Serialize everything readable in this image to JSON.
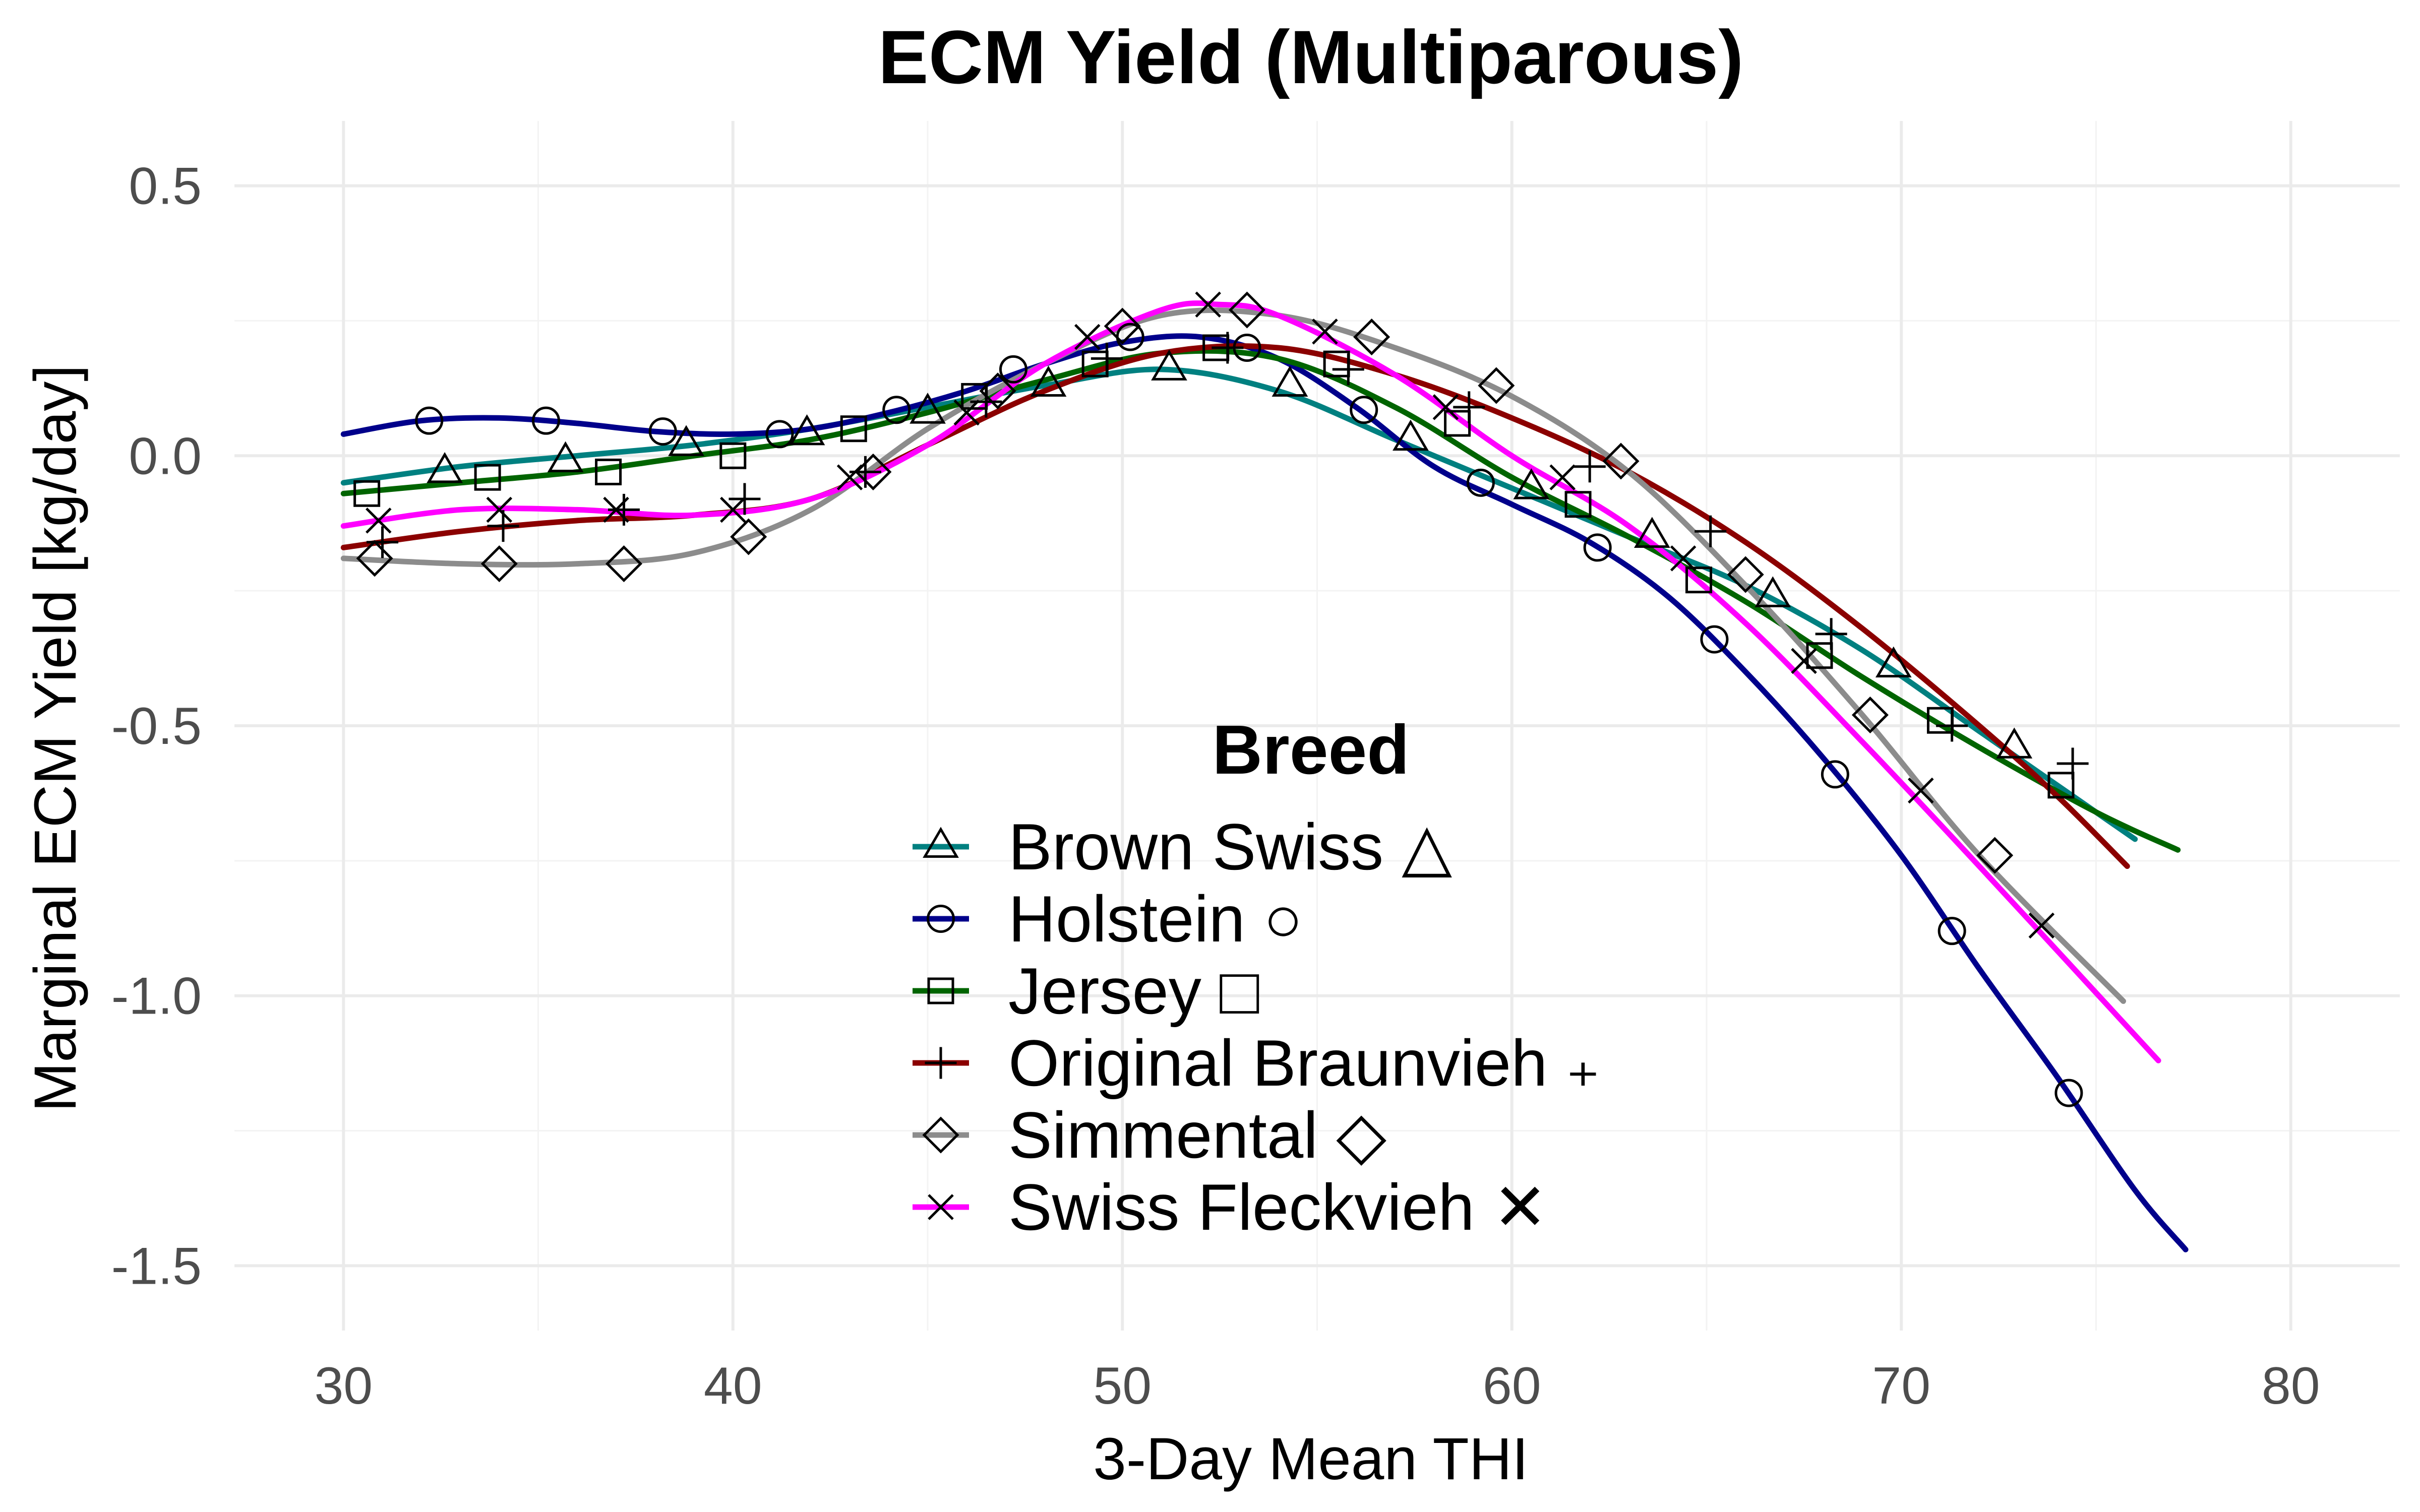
{
  "chart_data": {
    "type": "line",
    "title": "ECM Yield (Multiparous)",
    "xlabel": "3-Day Mean THI",
    "ylabel": "Marginal ECM Yield [kg/day]",
    "xlim": [
      27.2,
      82.8
    ],
    "ylim": [
      -1.62,
      0.62
    ],
    "x_ticks": [
      30,
      40,
      50,
      60,
      70,
      80
    ],
    "x_tick_labels": [
      "30",
      "40",
      "50",
      "60",
      "70",
      "80"
    ],
    "y_ticks": [
      -1.5,
      -1.0,
      -0.5,
      0.0,
      0.5
    ],
    "y_tick_labels": [
      "-1.5",
      "-1.0",
      "-0.5",
      "0.0",
      "0.5"
    ],
    "grid": true,
    "legend": {
      "title": "Breed",
      "position": "inside-bottom-center"
    },
    "series": [
      {
        "name": "Brown Swiss △",
        "color": "#008080",
        "marker": "triangle",
        "x": [
          30,
          33,
          36,
          39,
          42,
          45,
          48,
          51,
          54,
          57,
          60,
          63,
          66,
          69,
          72,
          74,
          76
        ],
        "y": [
          -0.05,
          -0.02,
          0.0,
          0.02,
          0.05,
          0.09,
          0.13,
          0.16,
          0.12,
          0.03,
          -0.06,
          -0.15,
          -0.24,
          -0.36,
          -0.51,
          -0.61,
          -0.71
        ],
        "marker_x": [
          32.6,
          35.7,
          38.8,
          41.9,
          45.0,
          48.1,
          51.2,
          54.3,
          57.4,
          60.5,
          63.6,
          66.7,
          69.8,
          72.9
        ],
        "marker_y": [
          -0.03,
          -0.01,
          0.02,
          0.04,
          0.08,
          0.13,
          0.16,
          0.13,
          0.03,
          -0.06,
          -0.15,
          -0.26,
          -0.39,
          -0.54
        ]
      },
      {
        "name": "Holstein ○",
        "color": "#00008b",
        "marker": "circle",
        "x": [
          30,
          32,
          34,
          36,
          38,
          40,
          42,
          44,
          46,
          48,
          50,
          52,
          54,
          56,
          58,
          60,
          62,
          64,
          66,
          68,
          70,
          72,
          74,
          76,
          77.3
        ],
        "y": [
          0.04,
          0.065,
          0.07,
          0.06,
          0.045,
          0.04,
          0.05,
          0.08,
          0.12,
          0.17,
          0.21,
          0.22,
          0.18,
          0.09,
          -0.02,
          -0.09,
          -0.16,
          -0.26,
          -0.4,
          -0.56,
          -0.74,
          -0.95,
          -1.15,
          -1.36,
          -1.47
        ],
        "marker_x": [
          32.2,
          35.2,
          38.2,
          41.2,
          44.2,
          47.2,
          50.2,
          53.2,
          56.2,
          59.2,
          62.2,
          65.2,
          68.3,
          71.3,
          74.3
        ],
        "marker_y": [
          0.065,
          0.065,
          0.045,
          0.04,
          0.085,
          0.16,
          0.22,
          0.2,
          0.085,
          -0.05,
          -0.17,
          -0.34,
          -0.59,
          -0.88,
          -1.18
        ]
      },
      {
        "name": "Jersey □",
        "color": "#006400",
        "marker": "square",
        "x": [
          30,
          33,
          36,
          39,
          42,
          45,
          48,
          51,
          54,
          57,
          60,
          63,
          66,
          69,
          72,
          75,
          77.1
        ],
        "y": [
          -0.07,
          -0.05,
          -0.03,
          0.0,
          0.03,
          0.08,
          0.14,
          0.19,
          0.18,
          0.09,
          -0.04,
          -0.15,
          -0.27,
          -0.41,
          -0.54,
          -0.66,
          -0.73
        ],
        "marker_x": [
          30.6,
          33.7,
          36.8,
          40.0,
          43.1,
          46.2,
          49.3,
          52.4,
          55.5,
          58.6,
          61.7,
          64.8,
          67.9,
          71.0,
          74.1
        ],
        "marker_y": [
          -0.07,
          -0.04,
          -0.03,
          0.0,
          0.05,
          0.11,
          0.17,
          0.2,
          0.17,
          0.06,
          -0.09,
          -0.23,
          -0.37,
          -0.49,
          -0.61
        ]
      },
      {
        "name": "Original Braunvieh  ₊",
        "color": "#8b0000",
        "marker": "plus",
        "x": [
          30,
          33,
          36,
          39,
          42,
          45,
          48,
          51,
          54,
          57,
          60,
          63,
          66,
          69,
          72,
          74,
          75.8
        ],
        "y": [
          -0.17,
          -0.14,
          -0.12,
          -0.11,
          -0.08,
          0.02,
          0.12,
          0.19,
          0.2,
          0.15,
          0.07,
          -0.03,
          -0.16,
          -0.32,
          -0.5,
          -0.63,
          -0.76
        ],
        "marker_x": [
          31.0,
          34.1,
          37.2,
          40.3,
          43.4,
          46.5,
          49.6,
          52.7,
          55.8,
          58.9,
          62.0,
          65.1,
          68.2,
          71.3,
          74.4
        ],
        "marker_y": [
          -0.16,
          -0.13,
          -0.1,
          -0.08,
          -0.03,
          0.1,
          0.18,
          0.2,
          0.16,
          0.09,
          -0.02,
          -0.14,
          -0.33,
          -0.5,
          -0.57
        ]
      },
      {
        "name": "Simmental ◇",
        "color": "#8c8c8c",
        "marker": "diamond",
        "x": [
          30,
          33,
          36,
          39,
          42,
          45,
          48,
          51,
          54,
          57,
          60,
          63,
          66,
          69,
          72,
          75.7
        ],
        "y": [
          -0.19,
          -0.2,
          -0.2,
          -0.18,
          -0.1,
          0.05,
          0.17,
          0.26,
          0.26,
          0.2,
          0.11,
          -0.03,
          -0.24,
          -0.48,
          -0.74,
          -1.01
        ],
        "marker_x": [
          30.8,
          34.0,
          37.2,
          40.4,
          43.6,
          46.8,
          50.0,
          53.2,
          56.4,
          59.6,
          62.8,
          66.0,
          69.2,
          72.4
        ],
        "marker_y": [
          -0.19,
          -0.2,
          -0.2,
          -0.15,
          -0.03,
          0.12,
          0.24,
          0.27,
          0.22,
          0.13,
          -0.01,
          -0.22,
          -0.48,
          -0.74
        ]
      },
      {
        "name": "Swiss Fleckvieh ✕",
        "color": "#ff00ff",
        "marker": "cross",
        "x": [
          30,
          33,
          36,
          39,
          42,
          45,
          48,
          51,
          52.5,
          54,
          57,
          60,
          63,
          66,
          69,
          72,
          76.6
        ],
        "y": [
          -0.13,
          -0.1,
          -0.1,
          -0.11,
          -0.08,
          0.02,
          0.17,
          0.27,
          0.28,
          0.26,
          0.15,
          0.0,
          -0.13,
          -0.31,
          -0.53,
          -0.76,
          -1.12
        ],
        "marker_x": [
          30.9,
          34.0,
          37.0,
          40.0,
          43.0,
          46.0,
          49.1,
          52.2,
          55.2,
          58.3,
          61.3,
          64.4,
          67.5,
          70.5,
          73.6
        ],
        "marker_y": [
          -0.12,
          -0.1,
          -0.1,
          -0.1,
          -0.04,
          0.08,
          0.22,
          0.28,
          0.23,
          0.09,
          -0.04,
          -0.19,
          -0.38,
          -0.62,
          -0.87
        ]
      }
    ]
  }
}
